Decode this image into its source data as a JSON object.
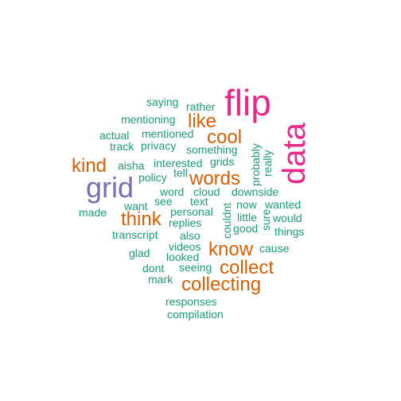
{
  "palette": {
    "magenta": "#e7298a",
    "orange": "#d95f02",
    "purple": "#7570b3",
    "teal": "#1b9e77"
  },
  "words": [
    {
      "text": "flip",
      "color": "magenta",
      "rotated": false
    },
    {
      "text": "data",
      "color": "magenta",
      "rotated": true
    },
    {
      "text": "grid",
      "color": "purple",
      "rotated": false
    },
    {
      "text": "collecting",
      "color": "orange",
      "rotated": false
    },
    {
      "text": "collect",
      "color": "orange",
      "rotated": false
    },
    {
      "text": "know",
      "color": "orange",
      "rotated": false
    },
    {
      "text": "words",
      "color": "orange",
      "rotated": false
    },
    {
      "text": "think",
      "color": "orange",
      "rotated": false
    },
    {
      "text": "kind",
      "color": "orange",
      "rotated": false
    },
    {
      "text": "cool",
      "color": "orange",
      "rotated": false
    },
    {
      "text": "like",
      "color": "orange",
      "rotated": false
    },
    {
      "text": "saying",
      "color": "teal",
      "rotated": false
    },
    {
      "text": "rather",
      "color": "teal",
      "rotated": false
    },
    {
      "text": "mentioning",
      "color": "teal",
      "rotated": false
    },
    {
      "text": "mentioned",
      "color": "teal",
      "rotated": false
    },
    {
      "text": "actual",
      "color": "teal",
      "rotated": false
    },
    {
      "text": "track",
      "color": "teal",
      "rotated": false
    },
    {
      "text": "privacy",
      "color": "teal",
      "rotated": false
    },
    {
      "text": "something",
      "color": "teal",
      "rotated": false
    },
    {
      "text": "grids",
      "color": "teal",
      "rotated": false
    },
    {
      "text": "interested",
      "color": "teal",
      "rotated": false
    },
    {
      "text": "aisha",
      "color": "teal",
      "rotated": false
    },
    {
      "text": "tell",
      "color": "teal",
      "rotated": false
    },
    {
      "text": "policy",
      "color": "teal",
      "rotated": false
    },
    {
      "text": "word",
      "color": "teal",
      "rotated": false
    },
    {
      "text": "cloud",
      "color": "teal",
      "rotated": false
    },
    {
      "text": "downside",
      "color": "teal",
      "rotated": false
    },
    {
      "text": "see",
      "color": "teal",
      "rotated": false
    },
    {
      "text": "text",
      "color": "teal",
      "rotated": false
    },
    {
      "text": "now",
      "color": "teal",
      "rotated": false
    },
    {
      "text": "wanted",
      "color": "teal",
      "rotated": false
    },
    {
      "text": "want",
      "color": "teal",
      "rotated": false
    },
    {
      "text": "personal",
      "color": "teal",
      "rotated": false
    },
    {
      "text": "made",
      "color": "teal",
      "rotated": false
    },
    {
      "text": "little",
      "color": "teal",
      "rotated": false
    },
    {
      "text": "would",
      "color": "teal",
      "rotated": false
    },
    {
      "text": "replies",
      "color": "teal",
      "rotated": false
    },
    {
      "text": "good",
      "color": "teal",
      "rotated": false
    },
    {
      "text": "things",
      "color": "teal",
      "rotated": false
    },
    {
      "text": "transcript",
      "color": "teal",
      "rotated": false
    },
    {
      "text": "also",
      "color": "teal",
      "rotated": false
    },
    {
      "text": "videos",
      "color": "teal",
      "rotated": false
    },
    {
      "text": "cause",
      "color": "teal",
      "rotated": false
    },
    {
      "text": "glad",
      "color": "teal",
      "rotated": false
    },
    {
      "text": "looked",
      "color": "teal",
      "rotated": false
    },
    {
      "text": "dont",
      "color": "teal",
      "rotated": false
    },
    {
      "text": "seeing",
      "color": "teal",
      "rotated": false
    },
    {
      "text": "mark",
      "color": "teal",
      "rotated": false
    },
    {
      "text": "responses",
      "color": "teal",
      "rotated": false
    },
    {
      "text": "compilation",
      "color": "teal",
      "rotated": false
    },
    {
      "text": "probably",
      "color": "teal",
      "rotated": true
    },
    {
      "text": "really",
      "color": "teal",
      "rotated": true
    },
    {
      "text": "sure",
      "color": "teal",
      "rotated": true
    },
    {
      "text": "couldnt",
      "color": "teal",
      "rotated": true
    }
  ]
}
